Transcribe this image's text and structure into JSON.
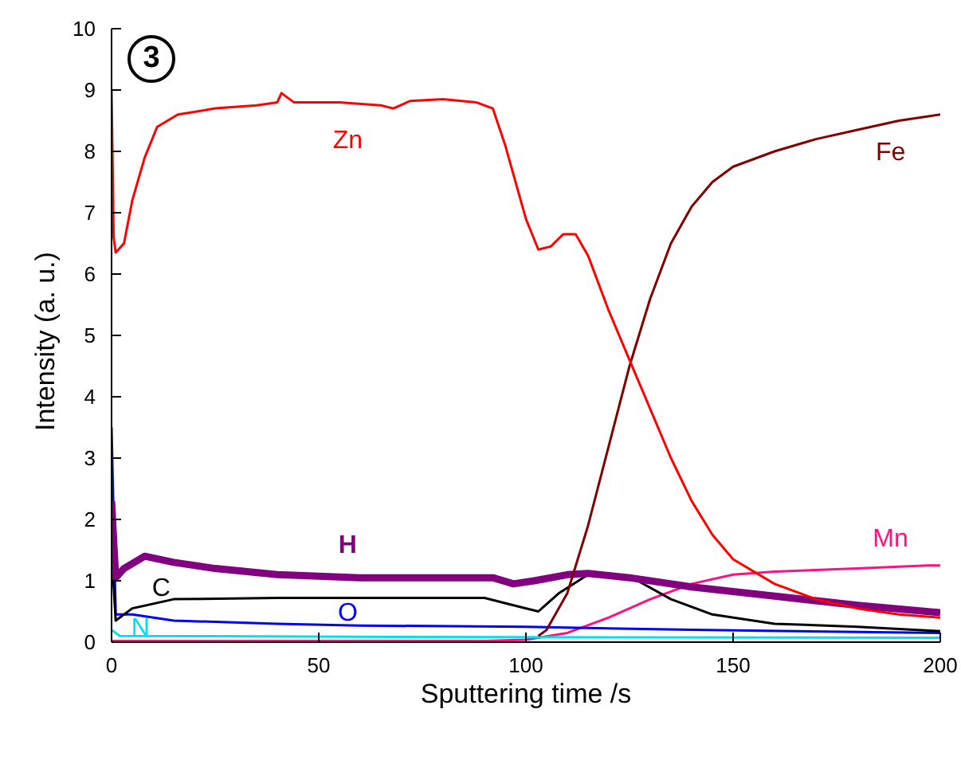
{
  "chart_data": {
    "type": "line",
    "xlabel": "Sputtering time /s",
    "ylabel": "Intensity (a. u.)",
    "annotations": [
      "3"
    ],
    "xlim": [
      0,
      200
    ],
    "xticks": [
      0,
      50,
      100,
      150,
      200
    ],
    "ylim": [
      0,
      10
    ],
    "yticks": [
      0,
      1,
      2,
      3,
      4,
      5,
      6,
      7,
      8,
      9,
      10
    ],
    "grid": false,
    "legend": false,
    "marker": "none",
    "line_style": "solid",
    "series": [
      {
        "name": "Zn",
        "color": "#ff0000",
        "x": [
          0,
          0.5,
          1,
          3,
          5,
          8,
          11,
          16,
          25,
          35,
          40,
          41,
          44,
          55,
          65,
          68,
          72,
          80,
          88,
          92,
          95,
          100,
          103,
          106,
          109,
          112,
          115,
          120,
          125,
          130,
          135,
          140,
          145,
          150,
          160,
          170,
          180,
          190,
          200
        ],
        "values": [
          9.0,
          6.6,
          6.35,
          6.5,
          7.2,
          7.9,
          8.4,
          8.6,
          8.7,
          8.75,
          8.8,
          8.95,
          8.8,
          8.8,
          8.75,
          8.7,
          8.82,
          8.85,
          8.8,
          8.7,
          8.1,
          6.9,
          6.4,
          6.45,
          6.65,
          6.65,
          6.3,
          5.4,
          4.6,
          3.8,
          3.0,
          2.3,
          1.75,
          1.35,
          0.95,
          0.7,
          0.55,
          0.45,
          0.4
        ]
      },
      {
        "name": "Fe",
        "color": "#800000",
        "x": [
          103,
          105,
          110,
          115,
          120,
          125,
          130,
          135,
          140,
          145,
          150,
          160,
          170,
          180,
          190,
          200
        ],
        "values": [
          0.1,
          0.2,
          0.8,
          1.9,
          3.2,
          4.5,
          5.6,
          6.5,
          7.1,
          7.5,
          7.75,
          8.0,
          8.2,
          8.35,
          8.5,
          8.6
        ]
      },
      {
        "name": "H",
        "color": "#800080",
        "x": [
          0,
          1,
          3,
          8,
          15,
          25,
          40,
          60,
          80,
          92,
          97,
          102,
          110,
          115,
          125,
          140,
          160,
          180,
          200
        ],
        "values": [
          2.3,
          1.05,
          1.2,
          1.4,
          1.3,
          1.2,
          1.1,
          1.05,
          1.05,
          1.05,
          0.95,
          1.0,
          1.1,
          1.12,
          1.05,
          0.9,
          0.75,
          0.6,
          0.48
        ]
      },
      {
        "name": "C",
        "color": "#000000",
        "x": [
          0,
          1,
          5,
          15,
          40,
          90,
          97,
          103,
          108,
          115,
          120,
          127,
          135,
          145,
          160,
          180,
          200
        ],
        "values": [
          1.5,
          0.35,
          0.55,
          0.7,
          0.72,
          0.72,
          0.6,
          0.5,
          0.8,
          1.1,
          1.12,
          1.0,
          0.7,
          0.45,
          0.3,
          0.25,
          0.18
        ]
      },
      {
        "name": "O",
        "color": "#0000ff",
        "x": [
          0,
          1,
          5,
          15,
          40,
          60,
          100,
          140,
          200
        ],
        "values": [
          3.5,
          0.45,
          0.45,
          0.35,
          0.3,
          0.27,
          0.25,
          0.2,
          0.15
        ]
      },
      {
        "name": "N",
        "color": "#00e0f0",
        "x": [
          0,
          2,
          100,
          200
        ],
        "values": [
          0.2,
          0.1,
          0.08,
          0.07
        ]
      },
      {
        "name": "Mn",
        "color": "#ff1080",
        "x": [
          0,
          90,
          100,
          110,
          120,
          130,
          140,
          150,
          160,
          180,
          197,
          200
        ],
        "values": [
          0.02,
          0.02,
          0.04,
          0.15,
          0.4,
          0.7,
          0.95,
          1.1,
          1.15,
          1.2,
          1.25,
          1.25
        ]
      }
    ]
  }
}
